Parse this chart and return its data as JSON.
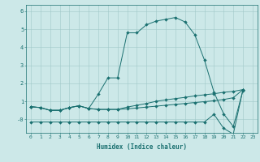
{
  "xlabel": "Humidex (Indice chaleur)",
  "x_values": [
    0,
    1,
    2,
    3,
    4,
    5,
    6,
    7,
    8,
    9,
    10,
    11,
    12,
    13,
    14,
    15,
    16,
    17,
    18,
    19,
    20,
    21,
    22,
    23
  ],
  "line1_y": [
    0.7,
    0.65,
    0.5,
    0.5,
    0.65,
    0.75,
    0.6,
    1.4,
    2.3,
    2.3,
    4.8,
    4.8,
    5.25,
    5.45,
    5.55,
    5.65,
    5.4,
    4.7,
    3.3,
    1.5,
    0.3,
    -0.4,
    1.6,
    null
  ],
  "line2_y": [
    0.7,
    0.65,
    0.5,
    0.5,
    0.65,
    0.75,
    0.6,
    0.55,
    0.55,
    0.55,
    0.68,
    0.78,
    0.88,
    1.0,
    1.08,
    1.15,
    1.22,
    1.3,
    1.36,
    1.42,
    1.5,
    1.55,
    1.65,
    null
  ],
  "line3_y": [
    0.7,
    0.65,
    0.5,
    0.5,
    0.65,
    0.75,
    0.6,
    0.55,
    0.55,
    0.55,
    0.58,
    0.63,
    0.68,
    0.73,
    0.78,
    0.83,
    0.88,
    0.93,
    0.98,
    1.03,
    1.1,
    1.2,
    1.65,
    null
  ],
  "line4_y": [
    -0.15,
    -0.15,
    -0.15,
    -0.15,
    -0.15,
    -0.15,
    -0.15,
    -0.15,
    -0.15,
    -0.15,
    -0.15,
    -0.15,
    -0.15,
    -0.15,
    -0.15,
    -0.15,
    -0.15,
    -0.15,
    -0.15,
    0.28,
    -0.5,
    -0.82,
    1.65,
    null
  ],
  "line_color": "#1a7070",
  "bg_color": "#cce8e8",
  "grid_color": "#a0c8c8",
  "ylim": [
    -0.75,
    6.35
  ],
  "xlim": [
    -0.5,
    23.5
  ],
  "yticks": [
    0,
    1,
    2,
    3,
    4,
    5,
    6
  ],
  "ytick_labels": [
    "-0",
    "1",
    "2",
    "3",
    "4",
    "5",
    "6"
  ],
  "xtick_labels": [
    "0",
    "1",
    "2",
    "3",
    "4",
    "5",
    "6",
    "7",
    "8",
    "9",
    "10",
    "11",
    "12",
    "13",
    "14",
    "15",
    "16",
    "17",
    "18",
    "19",
    "20",
    "21",
    "22",
    "23"
  ]
}
